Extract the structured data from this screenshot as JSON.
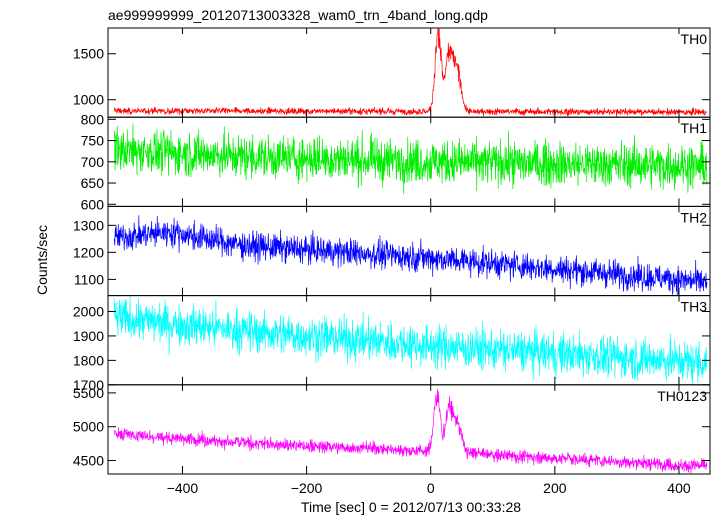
{
  "chart_data": {
    "type": "line",
    "title": "ae999999999_20120713003328_wam0_trn_4band_long.qdp",
    "xlabel": "Time [sec] 0 = 2012/07/13 00:33:28",
    "ylabel": "Counts/sec",
    "xlim": [
      -520,
      450
    ],
    "x_ticks": [
      -400,
      -200,
      0,
      200,
      400
    ],
    "x_tick_labels": [
      "−400",
      "−200",
      "0",
      "200",
      "400"
    ],
    "x_range_data": [
      -510,
      445
    ],
    "panels": [
      {
        "name": "TH0",
        "color": "#ff0000",
        "ylim": [
          810,
          1780
        ],
        "y_ticks": [
          1000,
          1500
        ],
        "y_tick_labels": [
          "1000",
          "1500"
        ],
        "baseline": [
          [
            -510,
            880
          ],
          [
            445,
            865
          ]
        ],
        "noise": 18,
        "bursts": [
          [
            12,
            5,
            820
          ],
          [
            30,
            6,
            620
          ],
          [
            43,
            6,
            420
          ]
        ]
      },
      {
        "name": "TH1",
        "color": "#00ee00",
        "ylim": [
          595,
          805
        ],
        "y_ticks": [
          600,
          650,
          700,
          750,
          800
        ],
        "y_tick_labels": [
          "600",
          "650",
          "700",
          "750",
          "800"
        ],
        "baseline": [
          [
            -510,
            728
          ],
          [
            -300,
            712
          ],
          [
            0,
            700
          ],
          [
            445,
            690
          ]
        ],
        "noise": 26,
        "bursts": []
      },
      {
        "name": "TH2",
        "color": "#0000ff",
        "ylim": [
          1040,
          1370
        ],
        "y_ticks": [
          1100,
          1200,
          1300
        ],
        "y_tick_labels": [
          "1100",
          "1200",
          "1300"
        ],
        "baseline": [
          [
            -510,
            1255
          ],
          [
            -420,
            1275
          ],
          [
            -300,
            1225
          ],
          [
            0,
            1180
          ],
          [
            445,
            1090
          ]
        ],
        "noise": 26,
        "bursts": []
      },
      {
        "name": "TH3",
        "color": "#00ffff",
        "ylim": [
          1700,
          2065
        ],
        "y_ticks": [
          1700,
          1800,
          1900,
          2000
        ],
        "y_tick_labels": [
          "1700",
          "1800",
          "1900",
          "2000"
        ],
        "baseline": [
          [
            -510,
            1975
          ],
          [
            -300,
            1920
          ],
          [
            0,
            1860
          ],
          [
            445,
            1790
          ]
        ],
        "noise": 42,
        "bursts": []
      },
      {
        "name": "TH0123",
        "color": "#ff00ff",
        "ylim": [
          4300,
          5620
        ],
        "y_ticks": [
          4500,
          5000,
          5500
        ],
        "y_tick_labels": [
          "4500",
          "5000",
          "5500"
        ],
        "baseline": [
          [
            -510,
            4900
          ],
          [
            -300,
            4760
          ],
          [
            0,
            4640
          ],
          [
            445,
            4410
          ]
        ],
        "noise": 48,
        "bursts": [
          [
            10,
            5,
            820
          ],
          [
            30,
            6,
            650
          ],
          [
            44,
            6,
            420
          ]
        ]
      }
    ]
  }
}
